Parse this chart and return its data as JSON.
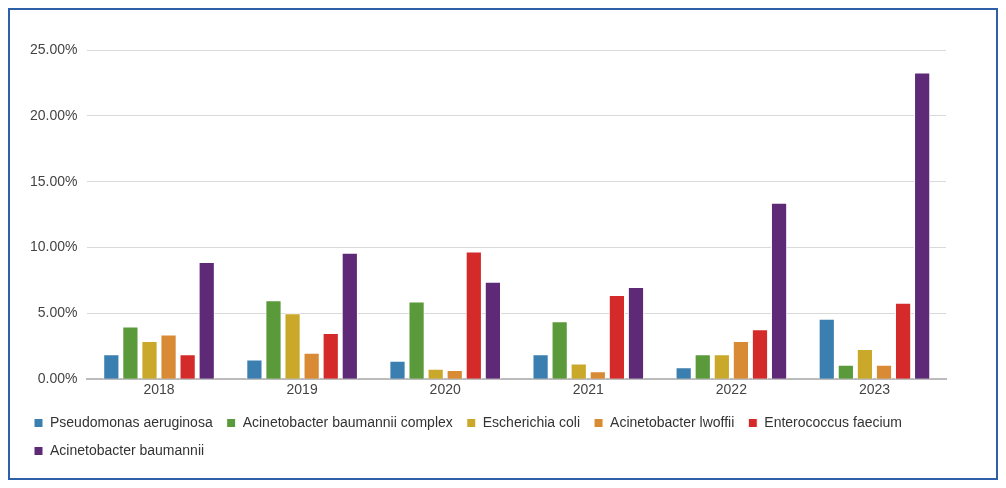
{
  "chart_data": {
    "type": "bar",
    "categories": [
      "2018",
      "2019",
      "2020",
      "2021",
      "2022",
      "2023"
    ],
    "series": [
      {
        "name": "Pseudomonas aeruginosa",
        "color": "#3b7eb0",
        "values": [
          1.9,
          1.5,
          1.4,
          1.9,
          0.9,
          4.6
        ]
      },
      {
        "name": "Acinetobacter baumannii complex",
        "color": "#5a9a3a",
        "values": [
          4.0,
          6.0,
          5.9,
          4.4,
          1.9,
          1.1
        ]
      },
      {
        "name": "Escherichia coli",
        "color": "#c9a82a",
        "values": [
          2.9,
          5.0,
          0.8,
          1.2,
          1.9,
          2.3
        ]
      },
      {
        "name": "Acinetobacter lwoffii",
        "color": "#d98a35",
        "values": [
          3.4,
          2.0,
          0.7,
          0.6,
          2.9,
          1.1
        ]
      },
      {
        "name": "Enterococcus faecium",
        "color": "#d42a2a",
        "values": [
          1.9,
          3.5,
          9.7,
          6.4,
          3.8,
          5.8
        ]
      },
      {
        "name": "Acinetobacter baumannii",
        "color": "#5e2a78",
        "values": [
          8.9,
          9.6,
          7.4,
          7.0,
          13.4,
          23.3
        ]
      }
    ],
    "ylim": [
      0,
      25
    ],
    "yticks": [
      {
        "value": 0,
        "label": "0.00%"
      },
      {
        "value": 5,
        "label": "5.00%"
      },
      {
        "value": 10,
        "label": "10.00%"
      },
      {
        "value": 15,
        "label": "15.00%"
      },
      {
        "value": 20,
        "label": "20.00%"
      },
      {
        "value": 25,
        "label": "25.00%"
      }
    ],
    "grid": "y",
    "legend": "bottom"
  }
}
